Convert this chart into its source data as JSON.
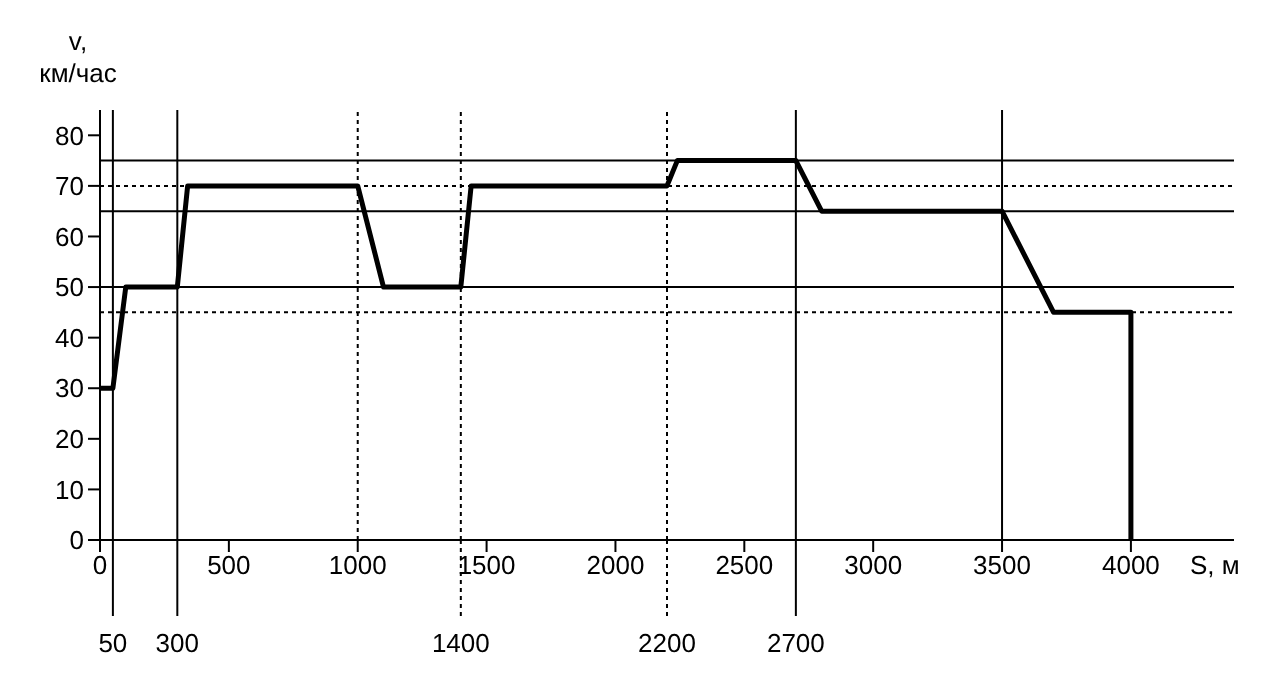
{
  "chart_data": {
    "type": "line",
    "xlabel": "S, м",
    "ylabel": "v,\nкм/час",
    "x": [
      0,
      50,
      100,
      300,
      340,
      1000,
      1100,
      1400,
      1440,
      2200,
      2240,
      2700,
      2800,
      3500,
      3700,
      4000,
      4000
    ],
    "series": [
      {
        "color": "#000000",
        "values": [
          30,
          30,
          50,
          50,
          70,
          70,
          50,
          50,
          70,
          70,
          75,
          75,
          65,
          65,
          45,
          45,
          0
        ]
      }
    ],
    "xlim": [
      0,
      4400
    ],
    "xticks": [
      0,
      500,
      1000,
      1500,
      2000,
      2500,
      3000,
      3500,
      4000
    ],
    "ylim": [
      0,
      85
    ],
    "yticks": [
      0,
      10,
      20,
      30,
      40,
      50,
      60,
      70,
      80
    ],
    "grid": false,
    "legend": false,
    "marker": "none",
    "line_style": "solid",
    "ref_lines": [
      {
        "axis": "y",
        "value": 75,
        "label": null,
        "line_style": "solid",
        "color": "#000000"
      },
      {
        "axis": "y",
        "value": 70,
        "label": null,
        "line_style": "dotted",
        "color": "#000000"
      },
      {
        "axis": "y",
        "value": 65,
        "label": null,
        "line_style": "solid",
        "color": "#000000"
      },
      {
        "axis": "y",
        "value": 50,
        "label": null,
        "line_style": "solid",
        "color": "#000000"
      },
      {
        "axis": "y",
        "value": 45,
        "label": null,
        "line_style": "dotted",
        "color": "#000000"
      },
      {
        "axis": "x",
        "value": 50,
        "label": "50",
        "line_style": "solid",
        "color": "#000000"
      },
      {
        "axis": "x",
        "value": 300,
        "label": "300",
        "line_style": "solid",
        "color": "#000000"
      },
      {
        "axis": "x",
        "value": 1000,
        "label": null,
        "line_style": "dotted",
        "color": "#000000"
      },
      {
        "axis": "x",
        "value": 1400,
        "label": "1400",
        "line_style": "dotted",
        "color": "#000000"
      },
      {
        "axis": "x",
        "value": 2200,
        "label": "2200",
        "line_style": "dotted",
        "color": "#000000"
      },
      {
        "axis": "x",
        "value": 2700,
        "label": "2700",
        "line_style": "solid",
        "color": "#000000"
      },
      {
        "axis": "x",
        "value": 3500,
        "label": null,
        "line_style": "solid",
        "color": "#000000"
      }
    ]
  }
}
